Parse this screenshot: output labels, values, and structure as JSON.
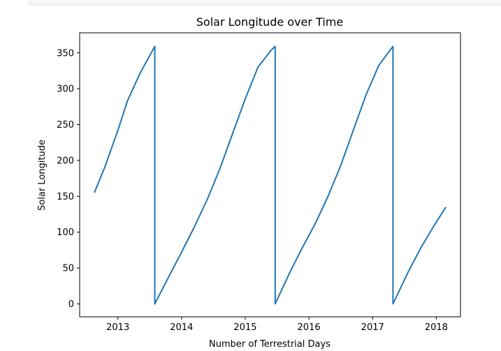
{
  "chart_data": {
    "type": "line",
    "title": "Solar Longitude over Time",
    "xlabel": "Number of Terrestrial Days",
    "ylabel": "Solar Longitude",
    "xlim": [
      2012.4,
      2018.38
    ],
    "ylim": [
      -18,
      378
    ],
    "xticks": [
      2013,
      2014,
      2015,
      2016,
      2017,
      2018
    ],
    "yticks": [
      0,
      50,
      100,
      150,
      200,
      250,
      300,
      350
    ],
    "grid": false,
    "legend": "none",
    "color": "#1f77b4",
    "series": [
      {
        "x": [
          2012.63,
          2012.8,
          2013.0,
          2013.15,
          2013.35,
          2013.58,
          2013.58,
          2013.8,
          2014.0,
          2014.2,
          2014.4,
          2014.6,
          2014.8,
          2015.0,
          2015.2,
          2015.4,
          2015.47,
          2015.47,
          2015.7,
          2015.9,
          2016.1,
          2016.3,
          2016.5,
          2016.7,
          2016.9,
          2017.1,
          2017.32,
          2017.32,
          2017.55,
          2017.75,
          2017.95,
          2018.15
        ],
        "y": [
          155,
          192,
          242,
          283,
          322,
          359,
          0,
          38,
          72,
          107,
          145,
          188,
          237,
          286,
          330,
          353,
          359,
          0,
          44,
          79,
          112,
          150,
          193,
          243,
          292,
          333,
          359,
          0,
          43,
          77,
          107,
          135
        ]
      }
    ]
  }
}
